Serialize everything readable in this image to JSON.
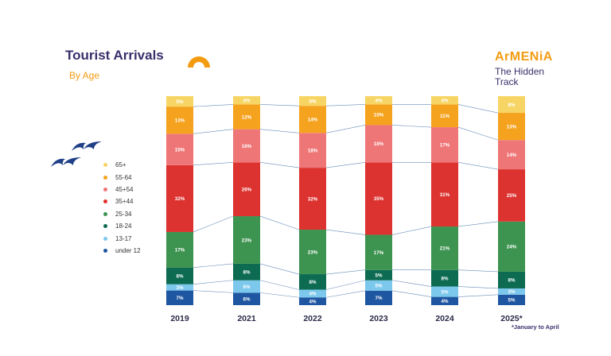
{
  "header": {
    "title": "Tourist Arrivals",
    "subtitle": "By Age"
  },
  "brand": {
    "name": "ArMENiA",
    "tagline_line1": "The Hidden",
    "tagline_line2": "Track"
  },
  "footnote": "*January to April",
  "colors": {
    "title": "#3a2f6b",
    "accent": "#f39c12",
    "65+": "#f7d564",
    "55-64": "#f5a21f",
    "45+54": "#ef7677",
    "35+44": "#dd3330",
    "25-34": "#3d9350",
    "18-24": "#0d6b52",
    "13-17": "#7cc8ec",
    "under 12": "#1f56a1"
  },
  "icons": [
    "sun-half-icon",
    "birds-icon"
  ],
  "chart_data": {
    "type": "bar",
    "stacked": true,
    "categories": [
      "2019",
      "2021",
      "2022",
      "2023",
      "2024",
      "2025*"
    ],
    "series": [
      {
        "name": "under 12",
        "values": [
          7,
          6,
          4,
          7,
          4,
          5
        ],
        "color": "#1f56a1",
        "text_color": "#ffffff"
      },
      {
        "name": "13-17",
        "values": [
          3,
          6,
          4,
          5,
          5,
          3
        ],
        "color": "#7cc8ec",
        "text_color": "#ffffff"
      },
      {
        "name": "18-24",
        "values": [
          8,
          8,
          8,
          5,
          8,
          8
        ],
        "color": "#0d6b52",
        "text_color": "#ffffff"
      },
      {
        "name": "25-34",
        "values": [
          17,
          23,
          23,
          17,
          21,
          24
        ],
        "color": "#3d9350",
        "text_color": "#ffffff"
      },
      {
        "name": "35+44",
        "values": [
          32,
          26,
          32,
          35,
          31,
          25
        ],
        "color": "#dd3330",
        "text_color": "#ffffff"
      },
      {
        "name": "45+54",
        "values": [
          15,
          16,
          18,
          18,
          17,
          14
        ],
        "color": "#ef7677",
        "text_color": "#ffffff"
      },
      {
        "name": "55-64",
        "values": [
          13,
          12,
          14,
          10,
          11,
          13
        ],
        "color": "#f5a21f",
        "text_color": "#ffffff"
      },
      {
        "name": "65+",
        "values": [
          5,
          4,
          5,
          4,
          4,
          8
        ],
        "color": "#f7d564",
        "text_color": "#ffffff"
      }
    ],
    "value_suffix": "%",
    "legend_order": [
      "65+",
      "55-64",
      "45+54",
      "35+44",
      "25-34",
      "18-24",
      "13-17",
      "under 12"
    ],
    "legend_position": "left",
    "connector_lines": true,
    "grid": false
  }
}
